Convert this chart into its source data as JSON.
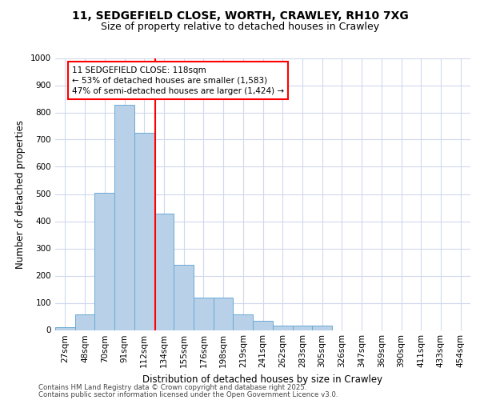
{
  "title_line1": "11, SEDGEFIELD CLOSE, WORTH, CRAWLEY, RH10 7XG",
  "title_line2": "Size of property relative to detached houses in Crawley",
  "xlabel": "Distribution of detached houses by size in Crawley",
  "ylabel": "Number of detached properties",
  "footer_line1": "Contains HM Land Registry data © Crown copyright and database right 2025.",
  "footer_line2": "Contains public sector information licensed under the Open Government Licence v3.0.",
  "categories": [
    "27sqm",
    "48sqm",
    "70sqm",
    "91sqm",
    "112sqm",
    "134sqm",
    "155sqm",
    "176sqm",
    "198sqm",
    "219sqm",
    "241sqm",
    "262sqm",
    "283sqm",
    "305sqm",
    "326sqm",
    "347sqm",
    "369sqm",
    "390sqm",
    "411sqm",
    "433sqm",
    "454sqm"
  ],
  "values": [
    10,
    57,
    505,
    828,
    725,
    428,
    239,
    118,
    118,
    57,
    35,
    15,
    15,
    15,
    0,
    0,
    0,
    0,
    0,
    0,
    0
  ],
  "bar_color": "#b8d0e8",
  "bar_edgecolor": "#6aaad4",
  "annotation_line1": "11 SEDGEFIELD CLOSE: 118sqm",
  "annotation_line2": "← 53% of detached houses are smaller (1,583)",
  "annotation_line3": "47% of semi-detached houses are larger (1,424) →",
  "vline_x_idx": 4.55,
  "vline_color": "red",
  "ylim": [
    0,
    1000
  ],
  "yticks": [
    0,
    100,
    200,
    300,
    400,
    500,
    600,
    700,
    800,
    900,
    1000
  ],
  "background_color": "#ffffff",
  "plot_bg_color": "#ffffff",
  "grid_color": "#d0d8ee",
  "title1_fontsize": 10,
  "title2_fontsize": 9,
  "axis_label_fontsize": 8.5,
  "tick_fontsize": 7.5,
  "footer_fontsize": 6.2
}
